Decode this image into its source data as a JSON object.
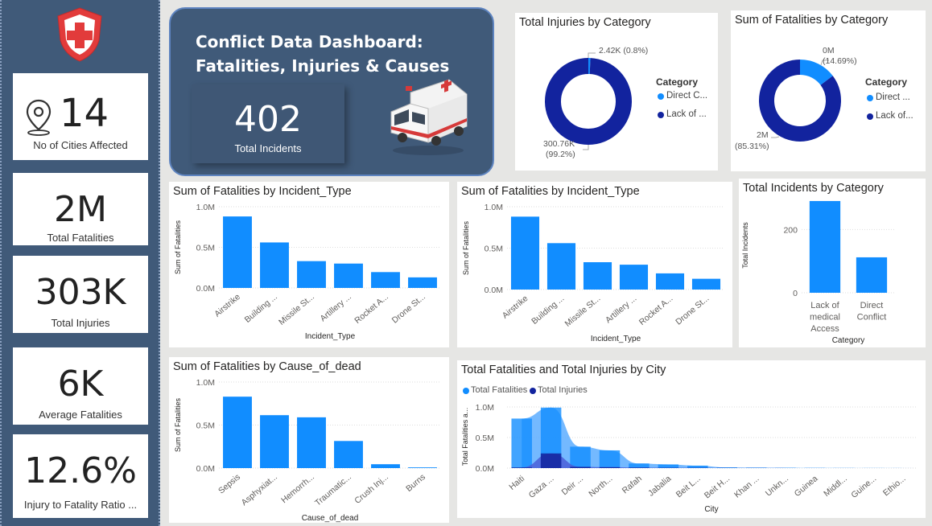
{
  "colors": {
    "sidebar": "#405a79",
    "bar": "#118dff",
    "dark_navy": "#12239e",
    "area_light": "#5cadff"
  },
  "sidebar": {
    "kpis": [
      {
        "value": "14",
        "label": "No of Cities Affected",
        "icon": "location-pin-icon"
      },
      {
        "value": "2M",
        "label": "Total Fatalities"
      },
      {
        "value": "303K",
        "label": "Total Injuries"
      },
      {
        "value": "6K",
        "label": "Average Fatalities"
      },
      {
        "value": "12.6%",
        "label": "Injury to Fatality Ratio ..."
      }
    ]
  },
  "hero": {
    "title_line1": "Conflict Data Dashboard:",
    "title_line2": "Fatalities, Injuries & Causes",
    "incidents_value": "402",
    "incidents_label": "Total Incidents"
  },
  "panels": {
    "injuries_donut": {
      "title": "Total Injuries by Category",
      "legend_title": "Category",
      "legend": [
        "Direct C...",
        "Lack of ..."
      ],
      "small_label": "2.42K (0.8%)",
      "large_label_1": "300.76K",
      "large_label_2": "(99.2%)"
    },
    "fatalities_donut": {
      "title": "Sum of Fatalities by Category",
      "legend_title": "Category",
      "legend": [
        "Direct ...",
        "Lack of..."
      ],
      "small_label_1": "0M",
      "small_label_2": "(14.69%)",
      "large_label_1": "2M",
      "large_label_2": "(85.31%)"
    },
    "fat_incident_1": {
      "title": "Sum of Fatalities by Incident_Type",
      "xlabel": "Incident_Type",
      "ylabel": "Sum of Fatalities"
    },
    "fat_incident_2": {
      "title": "Sum of Fatalities by Incident_Type",
      "xlabel": "Incident_Type",
      "ylabel": "Sum of Fatalities"
    },
    "incidents_category": {
      "title": "Total Incidents by Category",
      "xlabel": "Category",
      "ylabel": "Total Incidents"
    },
    "fat_cause": {
      "title": "Sum of Fatalities by Cause_of_dead",
      "xlabel": "Cause_of_dead",
      "ylabel": "Sum of Fatalities"
    },
    "city_area": {
      "title": "Total Fatalities and Total Injuries by City",
      "legend": [
        "Total Fatalities",
        "Total Injuries"
      ],
      "xlabel": "City",
      "ylabel": "Total Fatalities a..."
    }
  },
  "chart_data": [
    {
      "id": "injuries_donut",
      "type": "pie",
      "title": "Total Injuries by Category",
      "categories": [
        "Direct Conflict",
        "Lack of medical Access"
      ],
      "values": [
        2420,
        300760
      ],
      "percent": [
        0.8,
        99.2
      ],
      "series_colors": [
        "#118dff",
        "#12239e"
      ]
    },
    {
      "id": "fatalities_donut",
      "type": "pie",
      "title": "Sum of Fatalities by Category",
      "categories": [
        "Direct Conflict",
        "Lack of medical Access"
      ],
      "percent": [
        14.69,
        85.31
      ],
      "series_colors": [
        "#118dff",
        "#12239e"
      ]
    },
    {
      "id": "fat_incident_1",
      "type": "bar",
      "title": "Sum of Fatalities by Incident_Type",
      "categories": [
        "Airstrike",
        "Building ...",
        "Missile St...",
        "Artillery ...",
        "Rocket A...",
        "Drone St..."
      ],
      "values": [
        880000,
        560000,
        330000,
        300000,
        195000,
        130000
      ],
      "yticks": [
        {
          "v": 0,
          "label": "0.0M"
        },
        {
          "v": 500000,
          "label": "0.5M"
        },
        {
          "v": 1000000,
          "label": "1.0M"
        }
      ],
      "ylim": [
        0,
        1000000
      ],
      "xlabel": "Incident_Type",
      "ylabel": "Sum of Fatalities"
    },
    {
      "id": "fat_incident_2",
      "type": "bar",
      "title": "Sum of Fatalities by Incident_Type",
      "categories": [
        "Airstrike",
        "Building ...",
        "Missile St...",
        "Artillery ...",
        "Rocket A...",
        "Drone St..."
      ],
      "values": [
        880000,
        560000,
        330000,
        300000,
        195000,
        130000
      ],
      "yticks": [
        {
          "v": 0,
          "label": "0.0M"
        },
        {
          "v": 500000,
          "label": "0.5M"
        },
        {
          "v": 1000000,
          "label": "1.0M"
        }
      ],
      "ylim": [
        0,
        1000000
      ],
      "xlabel": "Incident_Type",
      "ylabel": "Sum of Fatalities"
    },
    {
      "id": "incidents_category",
      "type": "bar",
      "title": "Total Incidents by Category",
      "categories": [
        "Lack of medical Access",
        "Direct Conflict"
      ],
      "values": [
        290,
        112
      ],
      "yticks": [
        {
          "v": 0,
          "label": "0"
        },
        {
          "v": 200,
          "label": "200"
        }
      ],
      "ylim": [
        0,
        300
      ],
      "xlabel": "Category",
      "ylabel": "Total Incidents"
    },
    {
      "id": "fat_cause",
      "type": "bar",
      "title": "Sum of Fatalities by Cause_of_dead",
      "categories": [
        "Sepsis",
        "Asphyxiat...",
        "Hemorrh...",
        "Traumatic...",
        "Crush Inj...",
        "Burns"
      ],
      "values": [
        830000,
        615000,
        590000,
        315000,
        45000,
        8000
      ],
      "yticks": [
        {
          "v": 0,
          "label": "0.0M"
        },
        {
          "v": 500000,
          "label": "0.5M"
        },
        {
          "v": 1000000,
          "label": "1.0M"
        }
      ],
      "ylim": [
        0,
        1000000
      ],
      "xlabel": "Cause_of_dead",
      "ylabel": "Sum of Fatalities"
    },
    {
      "id": "city_area",
      "type": "area",
      "title": "Total Fatalities and Total Injuries by City",
      "categories": [
        "Haiti",
        "Gaza ...",
        "Deir ...",
        "North...",
        "Rafah",
        "Jabalia",
        "Beit L...",
        "Beit H...",
        "Khan ...",
        "Unkn...",
        "Guinea",
        "Middl...",
        "Guine...",
        "Ethio..."
      ],
      "series": [
        {
          "name": "Total Fatalities",
          "values": [
            810000,
            990000,
            350000,
            290000,
            75000,
            60000,
            40000,
            12000,
            8000,
            5000,
            3000,
            2000,
            1000,
            500
          ]
        },
        {
          "name": "Total Injuries",
          "values": [
            10000,
            240000,
            20000,
            15000,
            8000,
            5000,
            4000,
            2000,
            1000,
            500,
            300,
            200,
            100,
            50
          ]
        }
      ],
      "yticks": [
        {
          "v": 0,
          "label": "0.0M"
        },
        {
          "v": 500000,
          "label": "0.5M"
        },
        {
          "v": 1000000,
          "label": "1.0M"
        }
      ],
      "ylim": [
        0,
        1000000
      ],
      "xlabel": "City",
      "ylabel": "Total Fatalities a...",
      "series_colors": [
        "#118dff",
        "#12239e"
      ]
    }
  ]
}
